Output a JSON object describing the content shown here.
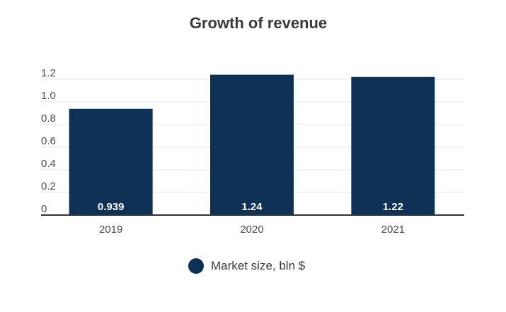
{
  "chart_data": {
    "type": "bar",
    "title": "Growth of revenue",
    "categories": [
      "2019",
      "2020",
      "2021"
    ],
    "series": [
      {
        "name": "Market size, bln $",
        "values": [
          0.939,
          1.24,
          1.22
        ],
        "labels": [
          "0.939",
          "1.24",
          "1.22"
        ]
      }
    ],
    "ylim": [
      0,
      1.25
    ],
    "yticks": [
      0,
      0.2,
      0.4,
      0.6,
      0.8,
      1.0,
      1.2
    ],
    "ytick_labels": [
      "0",
      "0.2",
      "0.4",
      "0.6",
      "0.8",
      "1.0",
      "1.2"
    ],
    "grid": true,
    "legend_position": "bottom",
    "colors": {
      "bar": "#0f3156",
      "grid": "#e3e3e3",
      "axis": "#333333"
    }
  }
}
